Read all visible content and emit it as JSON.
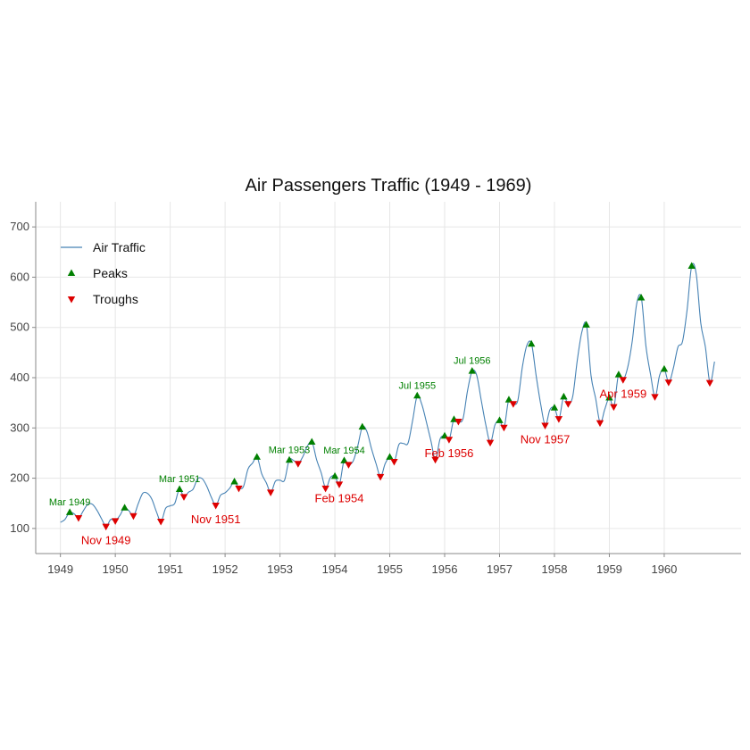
{
  "chart_data": {
    "type": "line",
    "title": "Air Passengers Traffic (1949 - 1969)",
    "xlabel": "",
    "ylabel": "",
    "xlim": [
      1948.55,
      1961.4
    ],
    "ylim": [
      50,
      750
    ],
    "x_ticks": [
      "1949",
      "1950",
      "1951",
      "1952",
      "1953",
      "1954",
      "1955",
      "1956",
      "1957",
      "1958",
      "1959",
      "1960"
    ],
    "y_ticks": [
      "100",
      "200",
      "300",
      "400",
      "500",
      "600",
      "700"
    ],
    "grid": true,
    "legend_position": "top-left",
    "colors": {
      "line": "#4682B4",
      "peak": "#008000",
      "trough": "#DD0000",
      "grid": "#E6E6E6",
      "axis": "#888888"
    },
    "series": [
      {
        "name": "Air Traffic",
        "kind": "line",
        "x_start": 1949.0,
        "step": 0.0833333,
        "values": [
          112,
          118,
          132,
          129,
          121,
          135,
          148,
          148,
          136,
          119,
          104,
          118,
          115,
          126,
          141,
          135,
          125,
          149,
          170,
          170,
          158,
          133,
          114,
          140,
          145,
          150,
          178,
          163,
          172,
          178,
          199,
          199,
          184,
          162,
          146,
          166,
          171,
          180,
          193,
          181,
          183,
          218,
          230,
          242,
          209,
          191,
          172,
          194,
          196,
          196,
          236,
          235,
          229,
          243,
          264,
          272,
          237,
          211,
          180,
          201,
          204,
          188,
          235,
          227,
          234,
          264,
          302,
          293,
          259,
          229,
          203,
          229,
          242,
          233,
          267,
          269,
          270,
          315,
          364,
          347,
          312,
          274,
          237,
          278,
          284,
          277,
          317,
          313,
          318,
          374,
          413,
          405,
          355,
          306,
          271,
          306,
          315,
          301,
          356,
          348,
          355,
          422,
          465,
          467,
          404,
          347,
          305,
          336,
          340,
          318,
          362,
          348,
          363,
          435,
          491,
          505,
          404,
          359,
          310,
          337,
          360,
          342,
          406,
          396,
          420,
          472,
          548,
          559,
          463,
          407,
          362,
          405,
          417,
          391,
          419,
          461,
          472,
          535,
          622,
          606,
          508,
          461,
          390,
          432
        ]
      },
      {
        "name": "Peaks",
        "kind": "marker",
        "x": [
          1949.17,
          1950.17,
          1951.17,
          1952.17,
          1952.58,
          1953.17,
          1953.58,
          1954.0,
          1954.17,
          1954.5,
          1955.0,
          1955.5,
          1956.0,
          1956.17,
          1956.5,
          1957.0,
          1957.17,
          1957.58,
          1958.0,
          1958.17,
          1958.58,
          1959.0,
          1959.17,
          1959.58,
          1960.0,
          1960.5
        ],
        "values": [
          132,
          141,
          178,
          193,
          242,
          236,
          272,
          204,
          235,
          302,
          242,
          364,
          284,
          317,
          413,
          315,
          356,
          467,
          340,
          362,
          505,
          360,
          406,
          559,
          417,
          622
        ]
      },
      {
        "name": "Troughs",
        "kind": "marker",
        "x": [
          1949.33,
          1949.83,
          1950.0,
          1950.33,
          1950.83,
          1951.25,
          1951.83,
          1952.25,
          1952.83,
          1953.33,
          1953.83,
          1954.08,
          1954.25,
          1954.83,
          1955.08,
          1955.83,
          1956.08,
          1956.25,
          1956.83,
          1957.08,
          1957.25,
          1957.83,
          1958.08,
          1958.25,
          1958.83,
          1959.08,
          1959.25,
          1959.83,
          1960.08,
          1960.83
        ],
        "values": [
          121,
          104,
          115,
          125,
          114,
          163,
          146,
          180,
          172,
          229,
          180,
          188,
          227,
          203,
          233,
          237,
          277,
          313,
          271,
          301,
          348,
          305,
          318,
          348,
          310,
          342,
          396,
          362,
          391,
          390
        ]
      }
    ],
    "annotations": [
      {
        "text": "Mar 1949",
        "kind": "peak",
        "x": 1949.17,
        "y": 132
      },
      {
        "text": "Mar 1951",
        "kind": "peak",
        "x": 1951.17,
        "y": 178
      },
      {
        "text": "Mar 1953",
        "kind": "peak",
        "x": 1953.17,
        "y": 236
      },
      {
        "text": "Mar 1954",
        "kind": "peak",
        "x": 1954.17,
        "y": 235
      },
      {
        "text": "Jul 1955",
        "kind": "peak",
        "x": 1955.5,
        "y": 364
      },
      {
        "text": "Jul 1956",
        "kind": "peak",
        "x": 1956.5,
        "y": 413
      },
      {
        "text": "Nov 1949",
        "kind": "trough",
        "x": 1949.83,
        "y": 104
      },
      {
        "text": "Nov 1951",
        "kind": "trough",
        "x": 1951.83,
        "y": 146
      },
      {
        "text": "Feb 1954",
        "kind": "trough",
        "x": 1954.08,
        "y": 188
      },
      {
        "text": "Feb 1956",
        "kind": "trough",
        "x": 1956.08,
        "y": 277
      },
      {
        "text": "Nov 1957",
        "kind": "trough",
        "x": 1957.83,
        "y": 305
      },
      {
        "text": "Apr 1959",
        "kind": "trough",
        "x": 1959.25,
        "y": 396
      }
    ]
  }
}
